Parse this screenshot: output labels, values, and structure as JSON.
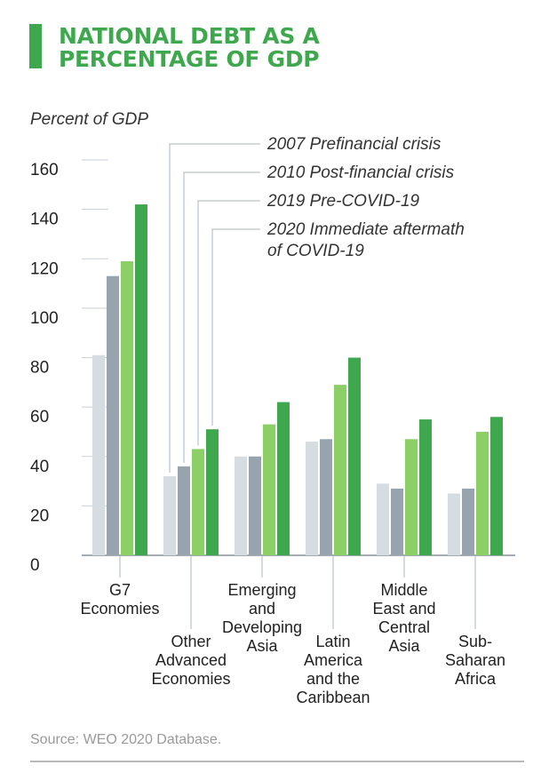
{
  "title_lines": [
    "NATIONAL DEBT AS A",
    "PERCENTAGE OF GDP"
  ],
  "source": "Source: WEO 2020 Database.",
  "colors": {
    "accent": "#3fa84f",
    "title": "#3fa84f",
    "series": [
      "#d5dce2",
      "#97a4ae",
      "#8ccf67",
      "#3fa84f"
    ],
    "axis_text": "#222222",
    "leader": "#aab4c0"
  },
  "chart_data": {
    "type": "bar",
    "ylabel": "Percent of GDP",
    "ylim": [
      0,
      160
    ],
    "yticks": [
      0,
      20,
      40,
      60,
      80,
      100,
      120,
      140,
      160
    ],
    "grid": false,
    "categories": [
      [
        "G7",
        "Economies"
      ],
      [
        "Other",
        "Advanced",
        "Economies"
      ],
      [
        "Emerging",
        "and",
        "Developing",
        "Asia"
      ],
      [
        "Latin",
        "America",
        "and the",
        "Caribbean"
      ],
      [
        "Middle",
        "East and",
        "Central",
        "Asia"
      ],
      [
        "Sub-",
        "Saharan",
        "Africa"
      ]
    ],
    "series": [
      {
        "name": "2007 Prefinancial crisis",
        "label_lines": [
          "2007 Prefinancial crisis"
        ],
        "values": [
          81,
          32,
          40,
          46,
          29,
          25
        ]
      },
      {
        "name": "2010 Post-financial crisis",
        "label_lines": [
          "2010 Post-financial crisis"
        ],
        "values": [
          113,
          36,
          40,
          47,
          27,
          27
        ]
      },
      {
        "name": "2019 Pre-COVID-19",
        "label_lines": [
          "2019 Pre-COVID-19"
        ],
        "values": [
          119,
          43,
          53,
          69,
          47,
          50
        ]
      },
      {
        "name": "2020 Immediate aftermath of COVID-19",
        "label_lines": [
          "2020 Immediate aftermath",
          "of COVID-19"
        ],
        "values": [
          142,
          51,
          62,
          80,
          55,
          56
        ]
      }
    ]
  }
}
